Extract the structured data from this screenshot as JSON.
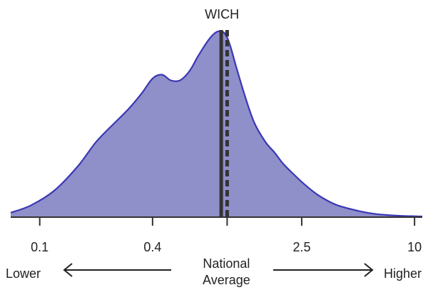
{
  "chart_data": {
    "type": "area",
    "title": "WICH",
    "x_scale": "log",
    "xlim": [
      0.07,
      11
    ],
    "ylim": [
      0,
      1
    ],
    "ticks": [
      {
        "value": 0.1,
        "label": "0.1"
      },
      {
        "value": 0.4,
        "label": "0.4"
      },
      {
        "value": 1.0,
        "label": ""
      },
      {
        "value": 2.5,
        "label": "2.5"
      },
      {
        "value": 10,
        "label": "10"
      }
    ],
    "density": {
      "x": [
        0.07,
        0.09,
        0.12,
        0.16,
        0.2,
        0.25,
        0.3,
        0.35,
        0.4,
        0.45,
        0.5,
        0.56,
        0.63,
        0.7,
        0.8,
        0.88,
        0.95,
        1.0,
        1.05,
        1.12,
        1.25,
        1.4,
        1.6,
        1.8,
        2.0,
        2.3,
        2.6,
        3.0,
        3.5,
        4.0,
        5.0,
        6.0,
        7.0,
        8.5,
        10,
        11
      ],
      "y": [
        0.02,
        0.06,
        0.14,
        0.27,
        0.4,
        0.5,
        0.58,
        0.66,
        0.74,
        0.76,
        0.73,
        0.73,
        0.78,
        0.86,
        0.95,
        0.99,
        0.99,
        0.96,
        0.9,
        0.8,
        0.64,
        0.5,
        0.4,
        0.34,
        0.28,
        0.22,
        0.17,
        0.12,
        0.08,
        0.055,
        0.03,
        0.015,
        0.008,
        0.003,
        0.001,
        0
      ]
    },
    "fill_color": "#8f8fca",
    "line_color": "#3a38b4",
    "solid_marker": {
      "x": 0.93,
      "color": "#333333"
    },
    "dashed_marker": {
      "x": 1.0,
      "color": "#333333",
      "label": "National Average"
    },
    "arrow_labels": {
      "left": "Lower",
      "right": "Higher"
    },
    "center_label": [
      "National",
      "Average"
    ]
  }
}
